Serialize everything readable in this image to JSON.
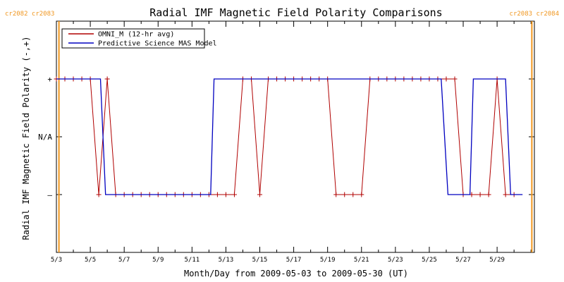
{
  "chart_data": {
    "type": "line",
    "title": "Radial IMF Magnetic Field Polarity Comparisons",
    "xlabel": "Month/Day from 2009-05-03 to 2009-05-30 (UT)",
    "ylabel": "Radial IMF Magnetic Field Polarity (-,+)",
    "x_ticks": [
      "5/3",
      "5/5",
      "5/7",
      "5/9",
      "5/11",
      "5/13",
      "5/15",
      "5/17",
      "5/19",
      "5/21",
      "5/23",
      "5/25",
      "5/27",
      "5/29"
    ],
    "x_tick_days": [
      0,
      2,
      4,
      6,
      8,
      10,
      12,
      14,
      16,
      18,
      20,
      22,
      24,
      26
    ],
    "xlim": [
      0,
      28.2
    ],
    "y_ticks": [
      {
        "value": 1,
        "label": "+"
      },
      {
        "value": 0,
        "label": "N/A"
      },
      {
        "value": -1,
        "label": "–"
      }
    ],
    "ylim": [
      -2,
      2
    ],
    "legend_position": "top-left",
    "carrington_markers": [
      {
        "day": 0.15,
        "label": "cr2082 cr2083",
        "color": "#f0961e",
        "side": "left"
      },
      {
        "day": 28.05,
        "label": "cr2083 cr2084",
        "color": "#f0961e",
        "side": "right"
      }
    ],
    "series": [
      {
        "name": "OMNI_M (12-hr avg)",
        "color": "#b00000",
        "marker": "+",
        "x": [
          0.0,
          0.5,
          1.0,
          1.5,
          2.0,
          2.5,
          3.0,
          3.5,
          4.0,
          4.5,
          5.0,
          5.5,
          6.0,
          6.5,
          7.0,
          7.5,
          8.0,
          8.5,
          9.0,
          9.5,
          10.0,
          10.5,
          11.0,
          11.5,
          12.0,
          12.5,
          13.0,
          13.5,
          14.0,
          14.5,
          15.0,
          15.5,
          16.0,
          16.5,
          17.0,
          17.5,
          18.0,
          18.5,
          19.0,
          19.5,
          20.0,
          20.5,
          21.0,
          21.5,
          22.0,
          22.5,
          23.0,
          23.5,
          24.0,
          24.5,
          25.0,
          25.5,
          26.0,
          26.5,
          27.0
        ],
        "y": [
          1,
          1,
          1,
          1,
          1,
          -1,
          1,
          -1,
          -1,
          -1,
          -1,
          -1,
          -1,
          -1,
          -1,
          -1,
          -1,
          -1,
          -1,
          -1,
          -1,
          -1,
          1,
          1,
          -1,
          1,
          1,
          1,
          1,
          1,
          1,
          1,
          1,
          -1,
          -1,
          -1,
          -1,
          1,
          1,
          1,
          1,
          1,
          1,
          1,
          1,
          1,
          1,
          1,
          -1,
          -1,
          -1,
          -1,
          1,
          -1,
          -1
        ]
      },
      {
        "name": "Predictive Science MAS Model",
        "color": "#0000c0",
        "x": [
          0.0,
          2.6,
          2.9,
          9.1,
          9.3,
          22.7,
          23.1,
          24.4,
          24.6,
          26.5,
          26.8,
          27.5
        ],
        "y": [
          1,
          1,
          -1,
          -1,
          1,
          1,
          -1,
          -1,
          1,
          1,
          -1,
          -1
        ]
      }
    ]
  }
}
